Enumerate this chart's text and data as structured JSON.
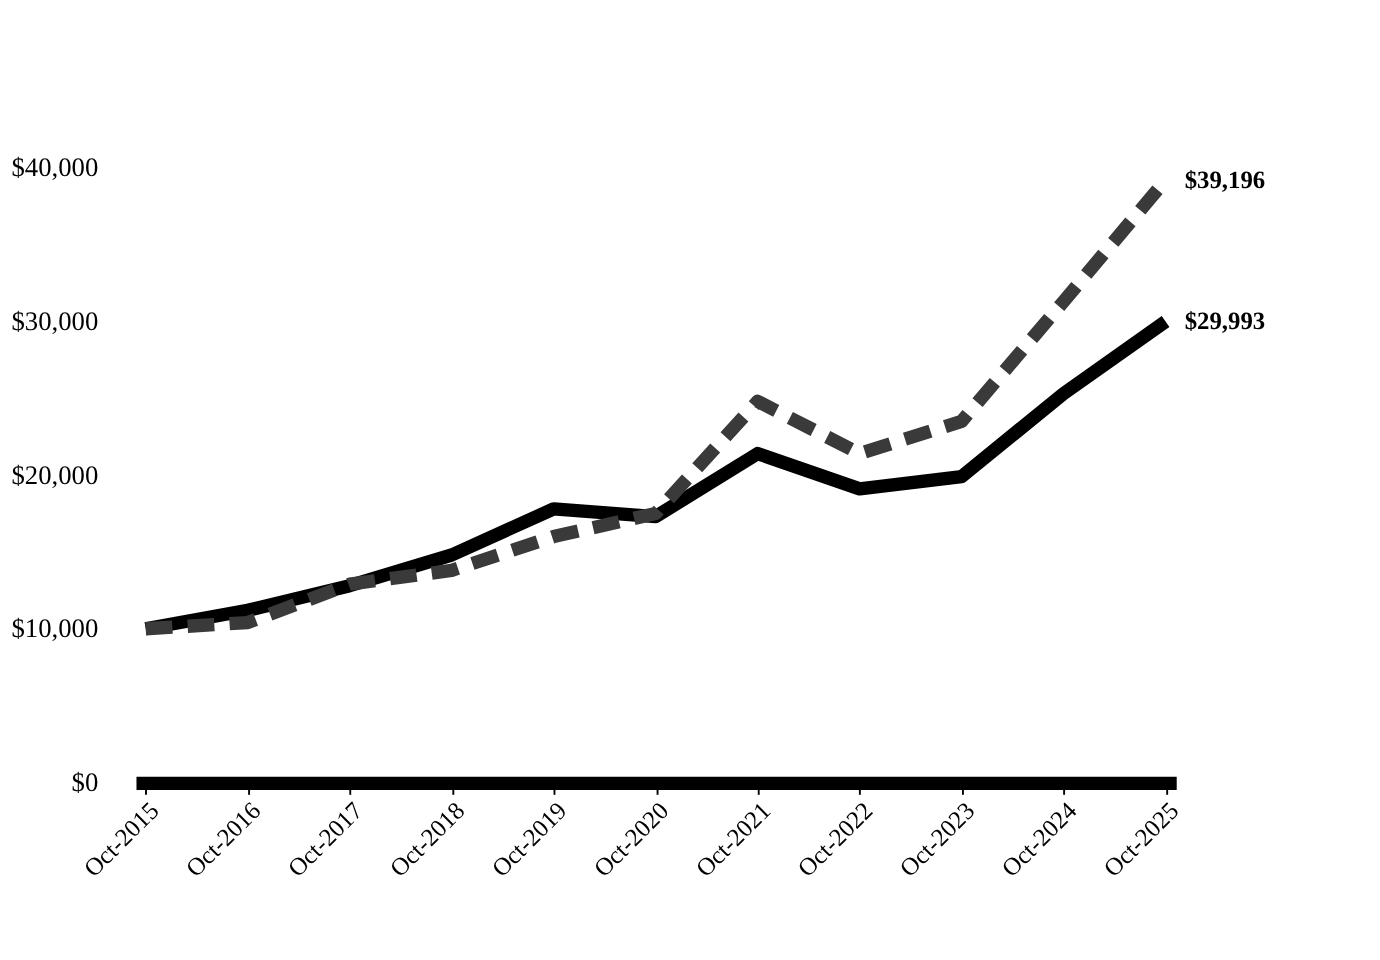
{
  "chart_data": {
    "type": "line",
    "categories": [
      "Oct-2015",
      "Oct-2016",
      "Oct-2017",
      "Oct-2018",
      "Oct-2019",
      "Oct-2020",
      "Oct-2021",
      "Oct-2022",
      "Oct-2023",
      "Oct-2024",
      "Oct-2025"
    ],
    "series": [
      {
        "color": "#000000",
        "line_style": "solid",
        "values": [
          10000,
          11200,
          12800,
          14800,
          17800,
          17300,
          21400,
          19100,
          19900,
          25300,
          29993
        ],
        "value_labels": [
          null,
          null,
          null,
          null,
          null,
          null,
          null,
          null,
          null,
          null,
          "$29,993"
        ]
      },
      {
        "color": "#3a3a3a",
        "line_style": "dashed",
        "values": [
          10000,
          10400,
          12900,
          13800,
          16000,
          17500,
          24800,
          21400,
          23500,
          31300,
          39196
        ],
        "value_labels": [
          null,
          null,
          null,
          null,
          null,
          null,
          null,
          null,
          null,
          null,
          "$39,196"
        ]
      }
    ],
    "ylim": [
      0,
      40000
    ],
    "yticks": [
      {
        "value": 0,
        "label": "$0"
      },
      {
        "value": 10000,
        "label": "$10,000"
      },
      {
        "value": 20000,
        "label": "$20,000"
      },
      {
        "value": 30000,
        "label": "$30,000"
      },
      {
        "value": 40000,
        "label": "$40,000"
      }
    ],
    "grid": false,
    "legend": false,
    "marker": "none"
  }
}
